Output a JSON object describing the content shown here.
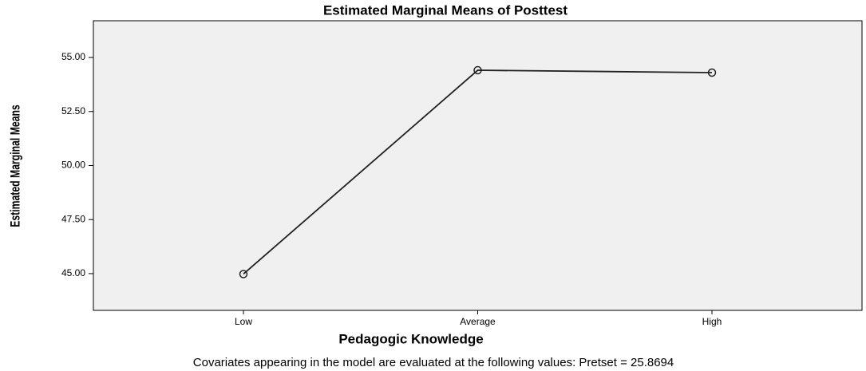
{
  "chart_data": {
    "type": "line",
    "title": "Estimated Marginal Means of Posttest",
    "xlabel": "Pedagogic Knowledge",
    "ylabel": "Estimated Marginal Means",
    "note": "Covariates appearing in the model are evaluated at the following values: Pretset = 25.8694",
    "categories": [
      "Low",
      "Average",
      "High"
    ],
    "values": [
      44.98,
      54.41,
      54.3
    ],
    "color": "#222222",
    "ylim": [
      43.3,
      56.7
    ],
    "yticks": [
      {
        "value": 45,
        "label": "45.00"
      },
      {
        "value": 47.5,
        "label": "47.50"
      },
      {
        "value": 50,
        "label": "50.00"
      },
      {
        "value": 52.5,
        "label": "52.50"
      },
      {
        "value": 55,
        "label": "55.00"
      }
    ]
  }
}
